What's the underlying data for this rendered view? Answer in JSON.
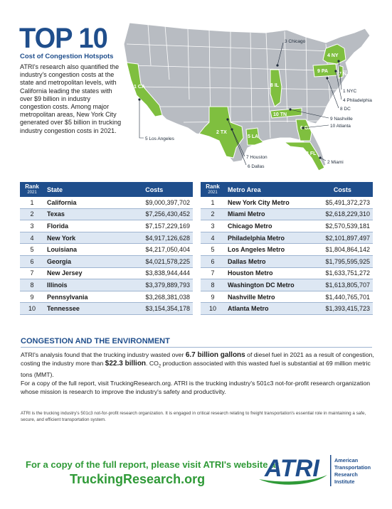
{
  "header": {
    "title": "TOP 10",
    "subtitle": "Cost of Congestion Hotspots",
    "intro": "ATRI's research also quantified the industry's congestion costs at the state and metropolitan levels, with California leading the states with over $9 billion in industry congestion costs. Among major metropolitan areas, New York City generated over $5 billion in trucking industry congestion costs in 2021."
  },
  "map": {
    "state_tags": [
      "1 CA",
      "2 TX",
      "3 FL",
      "4 NY",
      "5 LA",
      "6 GA",
      "7 NJ",
      "8 IL",
      "9 PA",
      "10 TN"
    ],
    "metro_labels": [
      "1 NYC",
      "2 Miami",
      "3 Chicago",
      "4 Philadelphia",
      "5 Los Angeles",
      "6 Dallas",
      "7 Houston",
      "8 DC",
      "9 Nashville",
      "10 Atlanta"
    ],
    "colors": {
      "highlight": "#7fbf3f",
      "base": "#b8bcc2",
      "border": "#ffffff"
    }
  },
  "state_table": {
    "headers": {
      "rank": "Rank",
      "year": "2021",
      "name": "State",
      "costs": "Costs"
    },
    "rows": [
      {
        "rank": "1",
        "name": "California",
        "cost": "$9,000,397,702"
      },
      {
        "rank": "2",
        "name": "Texas",
        "cost": "$7,256,430,452"
      },
      {
        "rank": "3",
        "name": "Florida",
        "cost": "$7,157,229,169"
      },
      {
        "rank": "4",
        "name": "New York",
        "cost": "$4,917,126,628"
      },
      {
        "rank": "5",
        "name": "Louisiana",
        "cost": "$4,217,050,404"
      },
      {
        "rank": "6",
        "name": "Georgia",
        "cost": "$4,021,578,225"
      },
      {
        "rank": "7",
        "name": "New Jersey",
        "cost": "$3,838,944,444"
      },
      {
        "rank": "8",
        "name": "Illinois",
        "cost": "$3,379,889,793"
      },
      {
        "rank": "9",
        "name": "Pennsylvania",
        "cost": "$3,268,381,038"
      },
      {
        "rank": "10",
        "name": "Tennessee",
        "cost": "$3,154,354,178"
      }
    ]
  },
  "metro_table": {
    "headers": {
      "rank": "Rank",
      "year": "2021",
      "name": "Metro Area",
      "costs": "Costs"
    },
    "rows": [
      {
        "rank": "1",
        "name": "New York City Metro",
        "cost": "$5,491,372,273"
      },
      {
        "rank": "2",
        "name": "Miami Metro",
        "cost": "$2,618,229,310"
      },
      {
        "rank": "3",
        "name": "Chicago Metro",
        "cost": "$2,570,539,181"
      },
      {
        "rank": "4",
        "name": "Philadelphia Metro",
        "cost": "$2,101,897,497"
      },
      {
        "rank": "5",
        "name": "Los Angeles Metro",
        "cost": "$1,804,864,142"
      },
      {
        "rank": "6",
        "name": "Dallas Metro",
        "cost": "$1,795,595,925"
      },
      {
        "rank": "7",
        "name": "Houston Metro",
        "cost": "$1,633,751,272"
      },
      {
        "rank": "8",
        "name": "Washington DC Metro",
        "cost": "$1,613,805,707"
      },
      {
        "rank": "9",
        "name": "Nashville Metro",
        "cost": "$1,440,765,701"
      },
      {
        "rank": "10",
        "name": "Atlanta Metro",
        "cost": "$1,393,415,723"
      }
    ]
  },
  "environment": {
    "heading": "CONGESTION AND THE ENVIRONMENT",
    "p1_a": "ATRI's analysis found that the trucking industry wasted over ",
    "p1_b": "6.7 billion gallons",
    "p1_c": " of diesel fuel in 2021 as a result of congestion, costing the industry more than ",
    "p1_d": "$22.3 billion",
    "p1_e": ". CO",
    "p1_sub": "2",
    "p1_f": " production associated with this wasted fuel is substantial at 69 million metric tons (MMT).",
    "p2": "For a copy of the full report, visit TruckingResearch.org.  ATRI is the trucking industry's 501c3 not-for-profit research organization whose mission is research to improve the industry's safety and productivity.",
    "footnote": "ATRI is the trucking industry's 501c3 not-for-profit research organization. It is engaged in critical research relating to freight transportation's essential role in maintaining a safe, secure, and efficient transportation system."
  },
  "cta": {
    "line1": "For a copy of the full report, please visit ATRI's website at",
    "line2": "TruckingResearch.org"
  },
  "logo": {
    "wordmark": "ATRI",
    "line1": "American",
    "line2": "Transportation",
    "line3": "Research",
    "line4": "Institute"
  }
}
